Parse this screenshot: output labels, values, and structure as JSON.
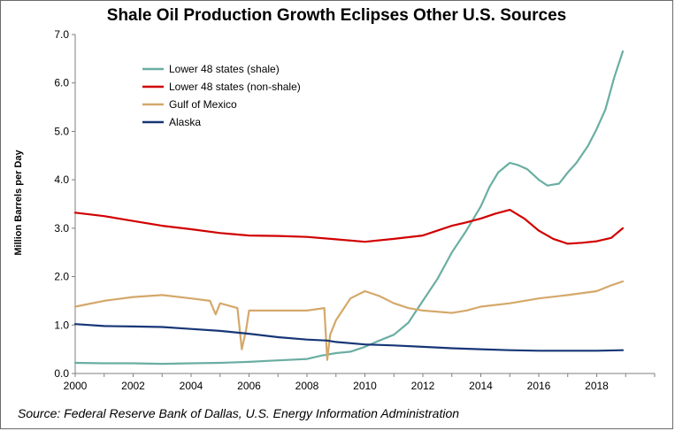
{
  "chart_data": {
    "type": "line",
    "title": "Shale Oil Production Growth Eclipses Other U.S. Sources",
    "ylabel": "Million Barrels per Day",
    "xlabel": "",
    "source": "Source: Federal Reserve Bank of Dallas, U.S. Energy Information Administration",
    "xlim": [
      2000,
      2020
    ],
    "ylim": [
      0,
      7
    ],
    "x_ticks": [
      "2000",
      "2002",
      "2004",
      "2006",
      "2008",
      "2010",
      "2012",
      "2014",
      "2016",
      "2018"
    ],
    "y_ticks": [
      "0.0",
      "1.0",
      "2.0",
      "3.0",
      "4.0",
      "5.0",
      "6.0",
      "7.0"
    ],
    "grid": false,
    "legend_position": "top-left",
    "series": [
      {
        "name": "Lower 48  states (shale)",
        "color": "#6aaea3",
        "x": [
          2000,
          2001,
          2002,
          2003,
          2004,
          2005,
          2006,
          2007,
          2008,
          2008.5,
          2009,
          2009.5,
          2010,
          2010.5,
          2011,
          2011.5,
          2012,
          2012.5,
          2013,
          2013.5,
          2014,
          2014.3,
          2014.6,
          2015,
          2015.3,
          2015.6,
          2016,
          2016.3,
          2016.7,
          2017,
          2017.3,
          2017.7,
          2018,
          2018.3,
          2018.6,
          2018.9
        ],
        "y": [
          0.22,
          0.21,
          0.21,
          0.2,
          0.21,
          0.22,
          0.24,
          0.27,
          0.3,
          0.37,
          0.42,
          0.45,
          0.55,
          0.68,
          0.8,
          1.05,
          1.5,
          1.95,
          2.5,
          2.95,
          3.45,
          3.85,
          4.15,
          4.35,
          4.3,
          4.22,
          4.0,
          3.88,
          3.92,
          4.15,
          4.35,
          4.7,
          5.05,
          5.45,
          6.1,
          6.65
        ]
      },
      {
        "name": "Lower 48 states (non-shale)",
        "color": "#d10000",
        "x": [
          2000,
          2001,
          2002,
          2003,
          2004,
          2005,
          2006,
          2007,
          2008,
          2009,
          2010,
          2011,
          2012,
          2012.5,
          2013,
          2013.5,
          2014,
          2014.5,
          2015,
          2015.5,
          2016,
          2016.5,
          2017,
          2017.5,
          2018,
          2018.5,
          2018.9
        ],
        "y": [
          3.32,
          3.25,
          3.15,
          3.05,
          2.98,
          2.9,
          2.85,
          2.84,
          2.82,
          2.77,
          2.72,
          2.78,
          2.85,
          2.95,
          3.05,
          3.12,
          3.2,
          3.3,
          3.38,
          3.2,
          2.95,
          2.78,
          2.68,
          2.7,
          2.73,
          2.8,
          3.0
        ]
      },
      {
        "name": "Gulf of Mexico",
        "color": "#d4a86a",
        "x": [
          2000,
          2001,
          2002,
          2003,
          2004,
          2004.65,
          2004.85,
          2005,
          2005.6,
          2005.75,
          2005.9,
          2006,
          2007,
          2008,
          2008.6,
          2008.7,
          2008.8,
          2009,
          2009.5,
          2010,
          2010.5,
          2011,
          2011.5,
          2012,
          2013,
          2013.5,
          2014,
          2015,
          2016,
          2017,
          2018,
          2018.5,
          2018.9
        ],
        "y": [
          1.38,
          1.5,
          1.58,
          1.62,
          1.55,
          1.5,
          1.22,
          1.45,
          1.35,
          0.5,
          0.9,
          1.3,
          1.3,
          1.3,
          1.35,
          0.28,
          0.8,
          1.1,
          1.55,
          1.7,
          1.6,
          1.45,
          1.35,
          1.3,
          1.25,
          1.3,
          1.38,
          1.45,
          1.55,
          1.62,
          1.7,
          1.82,
          1.9
        ]
      },
      {
        "name": "Alaska",
        "color": "#173677",
        "x": [
          2000,
          2001,
          2002,
          2003,
          2004,
          2005,
          2006,
          2007,
          2008,
          2008.7,
          2009,
          2010,
          2011,
          2012,
          2013,
          2014,
          2015,
          2016,
          2017,
          2018,
          2018.9
        ],
        "y": [
          1.02,
          0.98,
          0.97,
          0.96,
          0.92,
          0.88,
          0.82,
          0.75,
          0.7,
          0.68,
          0.65,
          0.6,
          0.58,
          0.55,
          0.52,
          0.5,
          0.48,
          0.47,
          0.47,
          0.47,
          0.48
        ]
      }
    ]
  }
}
